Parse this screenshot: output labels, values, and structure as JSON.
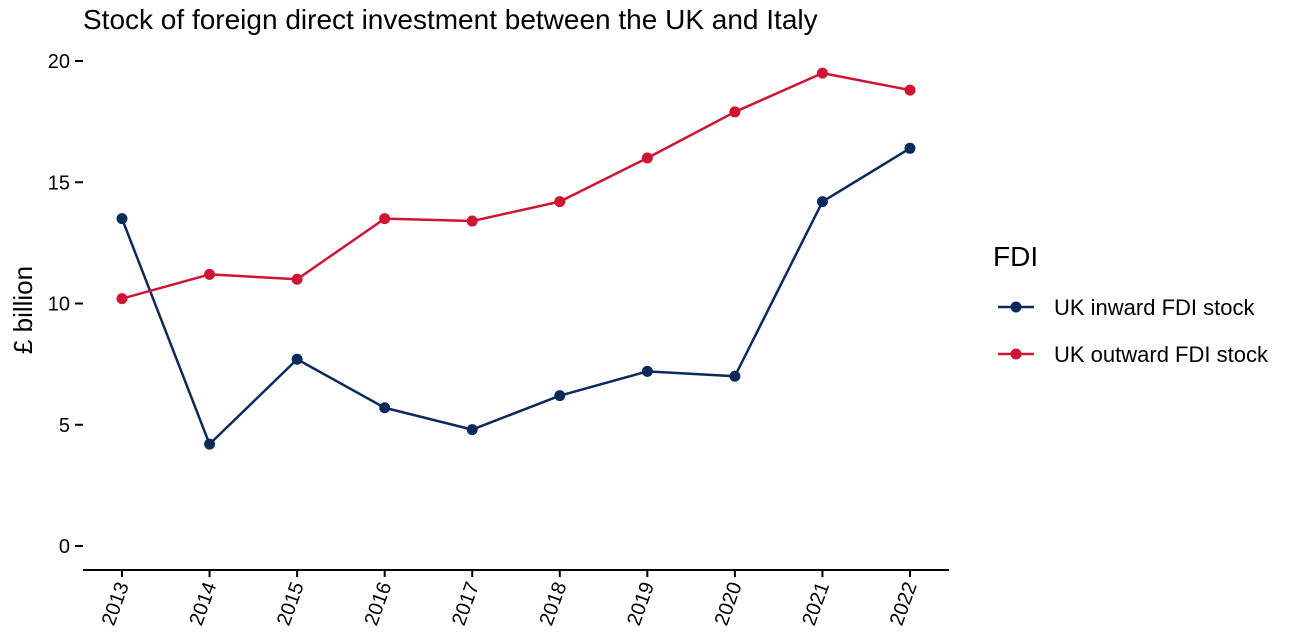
{
  "chart_data": {
    "type": "line",
    "title": "Stock of foreign direct investment between the UK and Italy",
    "xlabel": "",
    "ylabel": "£ billion",
    "categories": [
      "2013",
      "2014",
      "2015",
      "2016",
      "2017",
      "2018",
      "2019",
      "2020",
      "2021",
      "2022"
    ],
    "y_ticks": [
      "0",
      "5",
      "10",
      "15",
      "20"
    ],
    "ylim": [
      0,
      20
    ],
    "grid": false,
    "legend_position": "right",
    "legend_title": "FDI",
    "series": [
      {
        "name": "UK inward FDI stock",
        "color": "#0b2a5c",
        "values": [
          13.5,
          4.2,
          7.7,
          5.7,
          4.8,
          6.2,
          7.2,
          7.0,
          14.2,
          16.4
        ]
      },
      {
        "name": "UK outward FDI stock",
        "color": "#cf1434",
        "values": [
          10.2,
          11.2,
          11.0,
          13.5,
          13.4,
          14.2,
          16.0,
          17.9,
          19.5,
          18.8
        ]
      }
    ]
  }
}
